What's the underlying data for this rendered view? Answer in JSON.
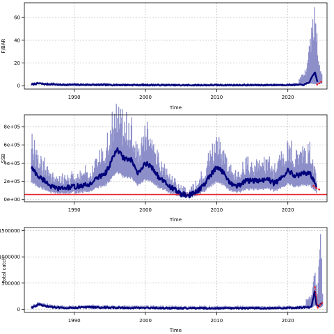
{
  "chart_data": [
    {
      "type": "area",
      "ylabel": "F/BAR",
      "xlabel": "Time",
      "xlim": [
        1983,
        2025.5
      ],
      "ylim": [
        -3,
        73
      ],
      "xticks": [
        1990,
        2000,
        2010,
        2020
      ],
      "yticks": [
        0,
        20,
        40,
        60
      ],
      "ytick_labels": [
        "0",
        "20",
        "40",
        "60"
      ],
      "grid": true,
      "colors": {
        "band": "#8d8fc9",
        "line": "#00007a",
        "forecast": "#e8262f"
      },
      "anchors": [
        [
          1984,
          1.0
        ],
        [
          1985,
          2.0
        ],
        [
          1986,
          1.2
        ],
        [
          1987,
          1.3
        ],
        [
          1988,
          0.7
        ],
        [
          1990,
          0.8
        ],
        [
          1995,
          0.6
        ],
        [
          2000,
          0.5
        ],
        [
          2005,
          0.3
        ],
        [
          2010,
          0.4
        ],
        [
          2015,
          0.4
        ],
        [
          2020,
          0.6
        ],
        [
          2022.3,
          0.8
        ],
        [
          2023.0,
          3.0
        ],
        [
          2023.8,
          12.0
        ],
        [
          2024.2,
          2.0
        ]
      ],
      "noise": 0.5,
      "band": [
        [
          2021.5,
          1.5,
          5
        ],
        [
          2022.5,
          2,
          12
        ],
        [
          2023.3,
          1.8,
          42
        ],
        [
          2023.9,
          1.3,
          68
        ],
        [
          2024.2,
          1.6,
          22
        ],
        [
          2024.8,
          1.8,
          14
        ]
      ],
      "forecast": [
        [
          2024.1,
          1.0
        ],
        [
          2024.4,
          2.0
        ],
        [
          2024.7,
          3.5
        ]
      ]
    },
    {
      "type": "area",
      "ylabel": "SSB",
      "xlabel": "Time",
      "xlim": [
        1983,
        2025.5
      ],
      "ylim": [
        -25000,
        930000
      ],
      "xticks": [
        1990,
        2000,
        2010,
        2020
      ],
      "yticks": [
        0,
        200000,
        400000,
        600000,
        800000
      ],
      "ytick_labels": [
        "0e+00",
        "2e+05",
        "4e+05",
        "6e+05",
        "8e+05"
      ],
      "grid": true,
      "reference_line": 55000,
      "colors": {
        "band": "#8d8fc9",
        "line": "#00007a",
        "forecast": "#e8262f",
        "reference": "#e8262f"
      },
      "anchors": [
        [
          1984,
          350000
        ],
        [
          1985,
          250000
        ],
        [
          1986,
          200000
        ],
        [
          1987,
          130000
        ],
        [
          1988,
          120000
        ],
        [
          1990,
          140000
        ],
        [
          1992,
          160000
        ],
        [
          1993.5,
          250000
        ],
        [
          1994.5,
          300000
        ],
        [
          1996,
          550000
        ],
        [
          1997,
          450000
        ],
        [
          1998,
          430000
        ],
        [
          1999,
          280000
        ],
        [
          2000,
          400000
        ],
        [
          2001,
          350000
        ],
        [
          2002,
          230000
        ],
        [
          2003,
          170000
        ],
        [
          2004,
          110000
        ],
        [
          2005,
          60000
        ],
        [
          2006,
          40000
        ],
        [
          2007,
          80000
        ],
        [
          2008,
          140000
        ],
        [
          2009,
          250000
        ],
        [
          2010,
          350000
        ],
        [
          2011,
          300000
        ],
        [
          2012,
          170000
        ],
        [
          2013,
          150000
        ],
        [
          2014,
          200000
        ],
        [
          2015,
          210000
        ],
        [
          2016,
          200000
        ],
        [
          2017,
          230000
        ],
        [
          2018,
          180000
        ],
        [
          2019,
          220000
        ],
        [
          2020,
          330000
        ],
        [
          2021,
          260000
        ],
        [
          2022,
          280000
        ],
        [
          2023,
          300000
        ],
        [
          2024,
          150000
        ]
      ],
      "noise": 28000,
      "band_scale": [
        0.55,
        1.55
      ],
      "forecast": [
        [
          2023.6,
          150000
        ],
        [
          2024.0,
          125000
        ],
        [
          2024.4,
          110000
        ]
      ]
    },
    {
      "type": "area",
      "ylabel": "total catch",
      "xlabel": "Time",
      "xlim": [
        1983,
        2025.5
      ],
      "ylim": [
        -60000,
        1560000
      ],
      "xticks": [
        1990,
        2000,
        2010,
        2020
      ],
      "yticks": [
        0,
        500000,
        1000000,
        1500000
      ],
      "ytick_labels": [
        "0",
        "500000",
        "1000000",
        "1500000"
      ],
      "grid": true,
      "colors": {
        "band": "#8d8fc9",
        "line": "#00007a",
        "forecast": "#e8262f"
      },
      "anchors": [
        [
          1984,
          30000
        ],
        [
          1985,
          90000
        ],
        [
          1986,
          60000
        ],
        [
          1987,
          40000
        ],
        [
          1988,
          30000
        ],
        [
          1990,
          30000
        ],
        [
          1992,
          40000
        ],
        [
          1995,
          30000
        ],
        [
          2000,
          25000
        ],
        [
          2005,
          20000
        ],
        [
          2010,
          20000
        ],
        [
          2015,
          20000
        ],
        [
          2020,
          25000
        ],
        [
          2022,
          35000
        ],
        [
          2023.3,
          40000
        ],
        [
          2023.8,
          380000
        ],
        [
          2024.0,
          90000
        ],
        [
          2024.3,
          50000
        ],
        [
          2024.8,
          120000
        ]
      ],
      "noise": 14000,
      "band": [
        [
          2022.5,
          30000,
          160000
        ],
        [
          2023.4,
          30000,
          280000
        ],
        [
          2023.8,
          80000,
          700000
        ],
        [
          2024.1,
          40000,
          250000
        ],
        [
          2024.6,
          30000,
          1350000
        ],
        [
          2024.9,
          60000,
          300000
        ]
      ],
      "forecast": [
        [
          2023.8,
          420000
        ],
        [
          2024.2,
          30000
        ],
        [
          2024.5,
          80000
        ],
        [
          2024.8,
          120000
        ]
      ]
    }
  ]
}
